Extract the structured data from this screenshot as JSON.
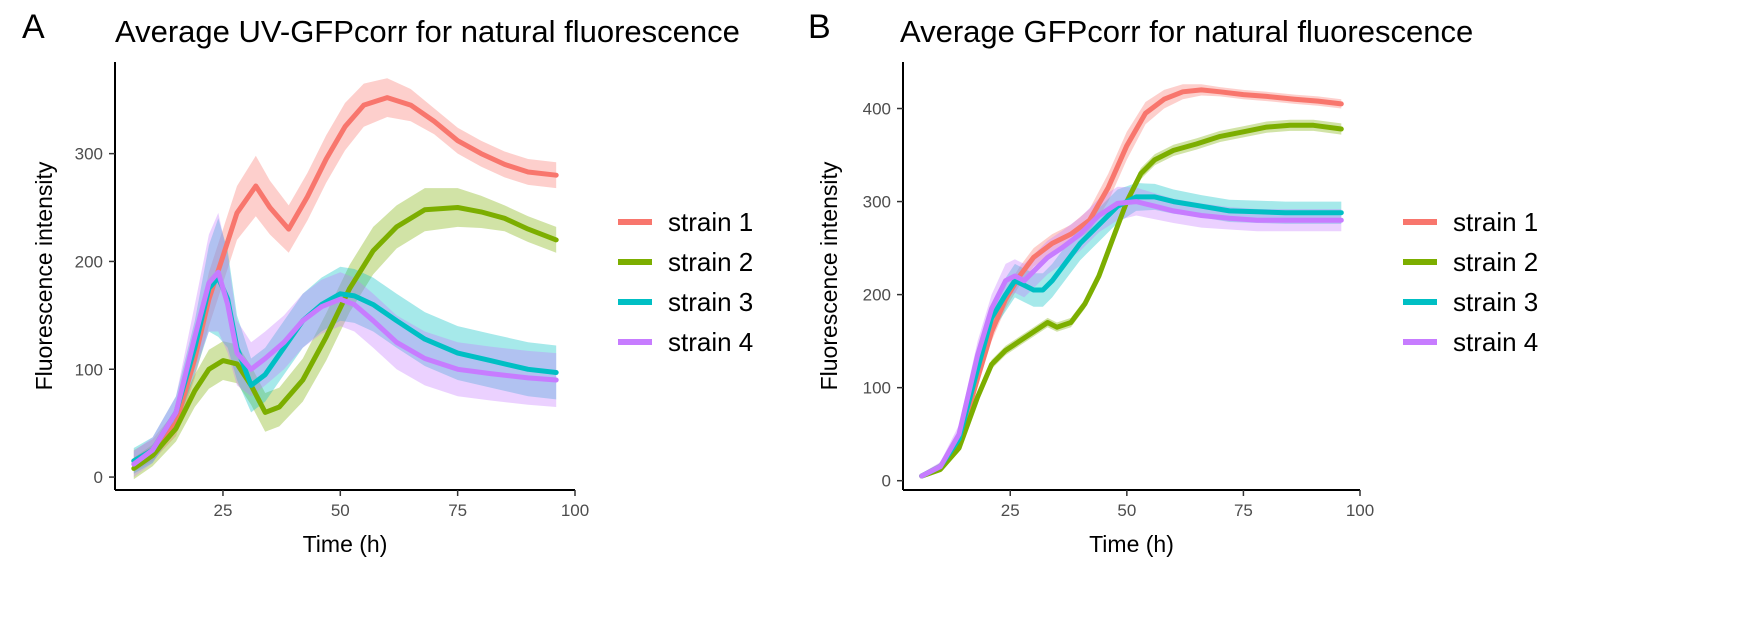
{
  "panels": [
    {
      "letter": "A",
      "title": "Average UV-GFPcorr for natural fluorescence"
    },
    {
      "letter": "B",
      "title": "Average GFPcorr for natural fluorescence"
    }
  ],
  "series_colors": {
    "strain 1": "#F8766D",
    "strain 2": "#7CAE00",
    "strain 3": "#00BFC4",
    "strain 4": "#C77CFF"
  },
  "chart_data": [
    {
      "type": "line",
      "title": "Average UV-GFPcorr for natural fluorescence",
      "xlabel": "Time (h)",
      "ylabel": "Fluorescence intensity",
      "xlim": [
        2,
        100
      ],
      "ylim": [
        -12,
        385
      ],
      "xticks": [
        25,
        50,
        75,
        100
      ],
      "yticks": [
        0,
        100,
        200,
        300
      ],
      "grid": false,
      "legend": "right",
      "series": [
        {
          "name": "strain 1",
          "x": [
            6,
            10,
            15,
            19,
            22,
            25,
            28,
            32,
            35,
            39,
            43,
            47,
            51,
            55,
            60,
            65,
            70,
            75,
            80,
            85,
            90,
            96
          ],
          "y": [
            15,
            25,
            50,
            110,
            165,
            205,
            245,
            270,
            250,
            230,
            260,
            295,
            325,
            345,
            352,
            345,
            330,
            312,
            300,
            290,
            283,
            280
          ],
          "band": [
            10,
            10,
            12,
            18,
            25,
            25,
            25,
            28,
            25,
            22,
            22,
            22,
            22,
            20,
            18,
            15,
            12,
            12,
            12,
            12,
            12,
            12
          ]
        },
        {
          "name": "strain 2",
          "x": [
            6,
            10,
            15,
            19,
            22,
            25,
            28,
            31,
            34,
            37,
            42,
            47,
            52,
            57,
            62,
            68,
            75,
            80,
            85,
            90,
            96
          ],
          "y": [
            8,
            20,
            45,
            80,
            100,
            108,
            105,
            85,
            60,
            65,
            90,
            130,
            175,
            210,
            232,
            248,
            250,
            246,
            240,
            230,
            220
          ],
          "band": [
            10,
            10,
            12,
            15,
            18,
            18,
            18,
            18,
            18,
            18,
            20,
            22,
            22,
            22,
            20,
            20,
            18,
            15,
            12,
            12,
            12
          ]
        },
        {
          "name": "strain 3",
          "x": [
            6,
            10,
            15,
            19,
            22,
            24,
            26,
            28,
            31,
            34,
            38,
            42,
            46,
            50,
            53,
            57,
            62,
            68,
            75,
            82,
            90,
            96
          ],
          "y": [
            15,
            25,
            60,
            120,
            175,
            185,
            165,
            120,
            85,
            95,
            120,
            145,
            160,
            170,
            168,
            160,
            145,
            128,
            115,
            108,
            100,
            97
          ],
          "band": [
            12,
            12,
            15,
            25,
            40,
            55,
            45,
            30,
            25,
            25,
            25,
            25,
            25,
            25,
            25,
            25,
            25,
            25,
            25,
            25,
            25,
            25
          ]
        },
        {
          "name": "strain 4",
          "x": [
            6,
            10,
            15,
            19,
            22,
            24,
            26,
            28,
            31,
            34,
            38,
            42,
            46,
            50,
            53,
            57,
            62,
            68,
            75,
            82,
            90,
            96
          ],
          "y": [
            12,
            25,
            60,
            130,
            180,
            190,
            160,
            115,
            100,
            110,
            125,
            145,
            158,
            165,
            160,
            145,
            125,
            110,
            100,
            96,
            92,
            90
          ],
          "band": [
            12,
            12,
            15,
            30,
            45,
            55,
            45,
            30,
            25,
            25,
            25,
            25,
            25,
            25,
            25,
            25,
            25,
            25,
            25,
            25,
            25,
            25
          ]
        }
      ]
    },
    {
      "type": "line",
      "title": "Average GFPcorr for natural fluorescence",
      "xlabel": "Time (h)",
      "ylabel": "Fluorescence intensity",
      "xlim": [
        2,
        100
      ],
      "ylim": [
        -10,
        450
      ],
      "xticks": [
        25,
        50,
        75,
        100
      ],
      "yticks": [
        0,
        100,
        200,
        300,
        400
      ],
      "grid": false,
      "legend": "right",
      "series": [
        {
          "name": "strain 1",
          "x": [
            6,
            10,
            14,
            18,
            21,
            24,
            27,
            30,
            34,
            38,
            42,
            46,
            50,
            54,
            58,
            62,
            66,
            70,
            75,
            80,
            86,
            91,
            96
          ],
          "y": [
            5,
            15,
            40,
            110,
            160,
            195,
            220,
            240,
            255,
            265,
            280,
            315,
            360,
            395,
            410,
            418,
            420,
            418,
            415,
            413,
            410,
            408,
            405
          ],
          "band": [
            3,
            4,
            6,
            8,
            10,
            10,
            10,
            10,
            10,
            10,
            12,
            15,
            15,
            12,
            10,
            8,
            6,
            5,
            5,
            5,
            5,
            5,
            5
          ]
        },
        {
          "name": "strain 2",
          "x": [
            6,
            10,
            14,
            18,
            21,
            24,
            27,
            30,
            33,
            35,
            38,
            41,
            44,
            47,
            50,
            53,
            56,
            60,
            65,
            70,
            75,
            80,
            85,
            90,
            96
          ],
          "y": [
            5,
            12,
            35,
            90,
            125,
            140,
            150,
            160,
            170,
            165,
            170,
            190,
            220,
            260,
            300,
            330,
            345,
            355,
            362,
            370,
            375,
            380,
            382,
            382,
            378
          ],
          "band": [
            3,
            3,
            4,
            5,
            5,
            5,
            5,
            5,
            5,
            5,
            5,
            5,
            5,
            5,
            6,
            6,
            6,
            6,
            6,
            6,
            6,
            6,
            6,
            6,
            6
          ]
        },
        {
          "name": "strain 3",
          "x": [
            6,
            10,
            14,
            18,
            21,
            24,
            26,
            28,
            30,
            32,
            34,
            37,
            40,
            44,
            48,
            52,
            56,
            60,
            66,
            72,
            78,
            84,
            90,
            96
          ],
          "y": [
            5,
            15,
            45,
            120,
            175,
            200,
            215,
            210,
            205,
            205,
            215,
            235,
            255,
            275,
            295,
            305,
            305,
            300,
            295,
            290,
            289,
            288,
            288,
            288
          ],
          "band": [
            3,
            4,
            8,
            12,
            15,
            18,
            18,
            18,
            18,
            18,
            18,
            18,
            18,
            18,
            18,
            15,
            14,
            13,
            12,
            12,
            12,
            12,
            12,
            12
          ]
        },
        {
          "name": "strain 4",
          "x": [
            6,
            10,
            14,
            18,
            21,
            24,
            26,
            28,
            30,
            33,
            36,
            40,
            44,
            48,
            52,
            56,
            60,
            66,
            72,
            78,
            84,
            90,
            96
          ],
          "y": [
            5,
            15,
            50,
            135,
            185,
            215,
            220,
            215,
            225,
            240,
            250,
            265,
            285,
            298,
            300,
            295,
            290,
            285,
            282,
            280,
            280,
            280,
            280
          ],
          "band": [
            3,
            5,
            10,
            15,
            15,
            18,
            18,
            18,
            18,
            18,
            18,
            18,
            18,
            18,
            15,
            14,
            13,
            13,
            12,
            12,
            12,
            12,
            12
          ]
        }
      ]
    }
  ]
}
